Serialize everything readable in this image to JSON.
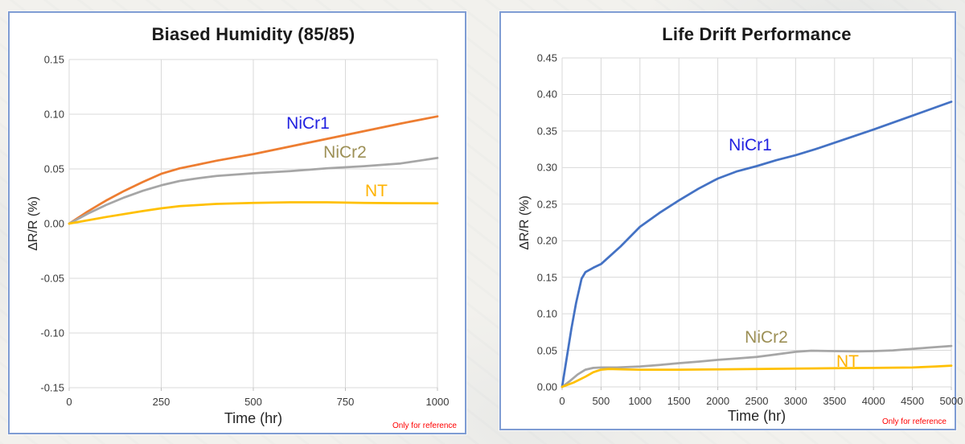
{
  "page": {
    "background_color": "#F2F1ED",
    "panel_border_color": "#7E9CD3"
  },
  "chart_data": [
    {
      "type": "line",
      "title": "Biased Humidity (85/85)",
      "xlabel": "Time (hr)",
      "ylabel": "ΔR/R (%)",
      "note": "Only for reference",
      "xlim": [
        0,
        1000
      ],
      "ylim": [
        -0.15,
        0.15
      ],
      "grid": true,
      "legend_position": "inline-labels-near-lines",
      "x_tick_values": [
        0,
        250,
        500,
        750,
        1000
      ],
      "x_tick_labels": [
        "0",
        "250",
        "500",
        "750",
        "1000"
      ],
      "y_tick_values": [
        0.15,
        0.1,
        0.05,
        0.0,
        -0.05,
        -0.1,
        -0.15
      ],
      "y_tick_labels": [
        "0.15",
        "0.10",
        "0.05",
        "0.00",
        "-0.05",
        "-0.10",
        "-0.15"
      ],
      "series": [
        {
          "name": "NiCr1",
          "line_color": "#ED7D31",
          "label_color": "#2222E0",
          "points": [
            [
              0,
              0
            ],
            [
              50,
              0.011
            ],
            [
              100,
              0.021
            ],
            [
              150,
              0.03
            ],
            [
              200,
              0.038
            ],
            [
              250,
              0.0455
            ],
            [
              300,
              0.0505
            ],
            [
              350,
              0.054
            ],
            [
              400,
              0.0575
            ],
            [
              500,
              0.0635
            ],
            [
              600,
              0.0705
            ],
            [
              700,
              0.0775
            ],
            [
              800,
              0.0845
            ],
            [
              900,
              0.0915
            ],
            [
              1000,
              0.098
            ]
          ]
        },
        {
          "name": "NiCr2",
          "line_color": "#A6A6A6",
          "label_color": "#9C8F55",
          "points": [
            [
              0,
              0
            ],
            [
              50,
              0.009
            ],
            [
              100,
              0.017
            ],
            [
              150,
              0.024
            ],
            [
              200,
              0.03
            ],
            [
              250,
              0.035
            ],
            [
              300,
              0.039
            ],
            [
              350,
              0.0415
            ],
            [
              400,
              0.0435
            ],
            [
              500,
              0.046
            ],
            [
              600,
              0.048
            ],
            [
              700,
              0.0505
            ],
            [
              800,
              0.0525
            ],
            [
              900,
              0.055
            ],
            [
              950,
              0.0575
            ],
            [
              1000,
              0.06
            ]
          ]
        },
        {
          "name": "NT",
          "line_color": "#FFC000",
          "label_color": "#FFB300",
          "points": [
            [
              0,
              0
            ],
            [
              100,
              0.006
            ],
            [
              200,
              0.0115
            ],
            [
              250,
              0.014
            ],
            [
              300,
              0.016
            ],
            [
              400,
              0.018
            ],
            [
              500,
              0.019
            ],
            [
              600,
              0.0195
            ],
            [
              700,
              0.0195
            ],
            [
              800,
              0.019
            ],
            [
              900,
              0.0187
            ],
            [
              1000,
              0.0185
            ]
          ]
        }
      ]
    },
    {
      "type": "line",
      "title": "Life Drift Performance",
      "xlabel": "Time (hr)",
      "ylabel": "ΔR/R (%)",
      "note": "Only for reference",
      "xlim": [
        0,
        5000
      ],
      "ylim": [
        0,
        0.45
      ],
      "grid": true,
      "legend_position": "inline-labels-near-lines",
      "x_tick_values": [
        0,
        500,
        1000,
        1500,
        2000,
        2500,
        3000,
        3500,
        4000,
        4500,
        5000
      ],
      "x_tick_labels": [
        "0",
        "500",
        "1000",
        "1500",
        "2000",
        "2500",
        "3000",
        "3500",
        "4000",
        "4500",
        "5000"
      ],
      "y_tick_values": [
        0.45,
        0.4,
        0.35,
        0.3,
        0.25,
        0.2,
        0.15,
        0.1,
        0.05,
        0.0
      ],
      "y_tick_labels": [
        "0.45",
        "0.40",
        "0.35",
        "0.30",
        "0.25",
        "0.20",
        "0.15",
        "0.10",
        "0.05",
        "0.00"
      ],
      "series": [
        {
          "name": "NiCr1",
          "line_color": "#4472C4",
          "label_color": "#2222E0",
          "points": [
            [
              0,
              0
            ],
            [
              60,
              0.04
            ],
            [
              120,
              0.08
            ],
            [
              180,
              0.115
            ],
            [
              250,
              0.148
            ],
            [
              300,
              0.157
            ],
            [
              400,
              0.163
            ],
            [
              500,
              0.168
            ],
            [
              750,
              0.192
            ],
            [
              1000,
              0.219
            ],
            [
              1250,
              0.238
            ],
            [
              1500,
              0.255
            ],
            [
              1750,
              0.271
            ],
            [
              2000,
              0.285
            ],
            [
              2250,
              0.295
            ],
            [
              2500,
              0.302
            ],
            [
              2750,
              0.31
            ],
            [
              3000,
              0.317
            ],
            [
              3250,
              0.325
            ],
            [
              3500,
              0.334
            ],
            [
              4000,
              0.352
            ],
            [
              4500,
              0.371
            ],
            [
              5000,
              0.39
            ]
          ]
        },
        {
          "name": "NiCr2",
          "line_color": "#A6A6A6",
          "label_color": "#9C8F55",
          "points": [
            [
              0,
              0
            ],
            [
              100,
              0.008
            ],
            [
              200,
              0.017
            ],
            [
              300,
              0.0235
            ],
            [
              400,
              0.026
            ],
            [
              500,
              0.0265
            ],
            [
              700,
              0.0265
            ],
            [
              1000,
              0.028
            ],
            [
              1250,
              0.03
            ],
            [
              1500,
              0.0325
            ],
            [
              1750,
              0.0345
            ],
            [
              2000,
              0.037
            ],
            [
              2250,
              0.039
            ],
            [
              2500,
              0.041
            ],
            [
              2750,
              0.0445
            ],
            [
              3000,
              0.048
            ],
            [
              3200,
              0.0495
            ],
            [
              3500,
              0.049
            ],
            [
              3800,
              0.0485
            ],
            [
              4000,
              0.049
            ],
            [
              4250,
              0.05
            ],
            [
              4500,
              0.052
            ],
            [
              4750,
              0.054
            ],
            [
              5000,
              0.056
            ]
          ]
        },
        {
          "name": "NT",
          "line_color": "#FFC000",
          "label_color": "#FFB300",
          "points": [
            [
              0,
              0
            ],
            [
              150,
              0.006
            ],
            [
              300,
              0.014
            ],
            [
              400,
              0.02
            ],
            [
              500,
              0.0235
            ],
            [
              600,
              0.0245
            ],
            [
              800,
              0.024
            ],
            [
              1000,
              0.0235
            ],
            [
              1500,
              0.0235
            ],
            [
              2000,
              0.024
            ],
            [
              2500,
              0.0245
            ],
            [
              3000,
              0.025
            ],
            [
              3500,
              0.0255
            ],
            [
              4000,
              0.026
            ],
            [
              4500,
              0.0265
            ],
            [
              4800,
              0.028
            ],
            [
              5000,
              0.029
            ]
          ]
        }
      ]
    }
  ]
}
